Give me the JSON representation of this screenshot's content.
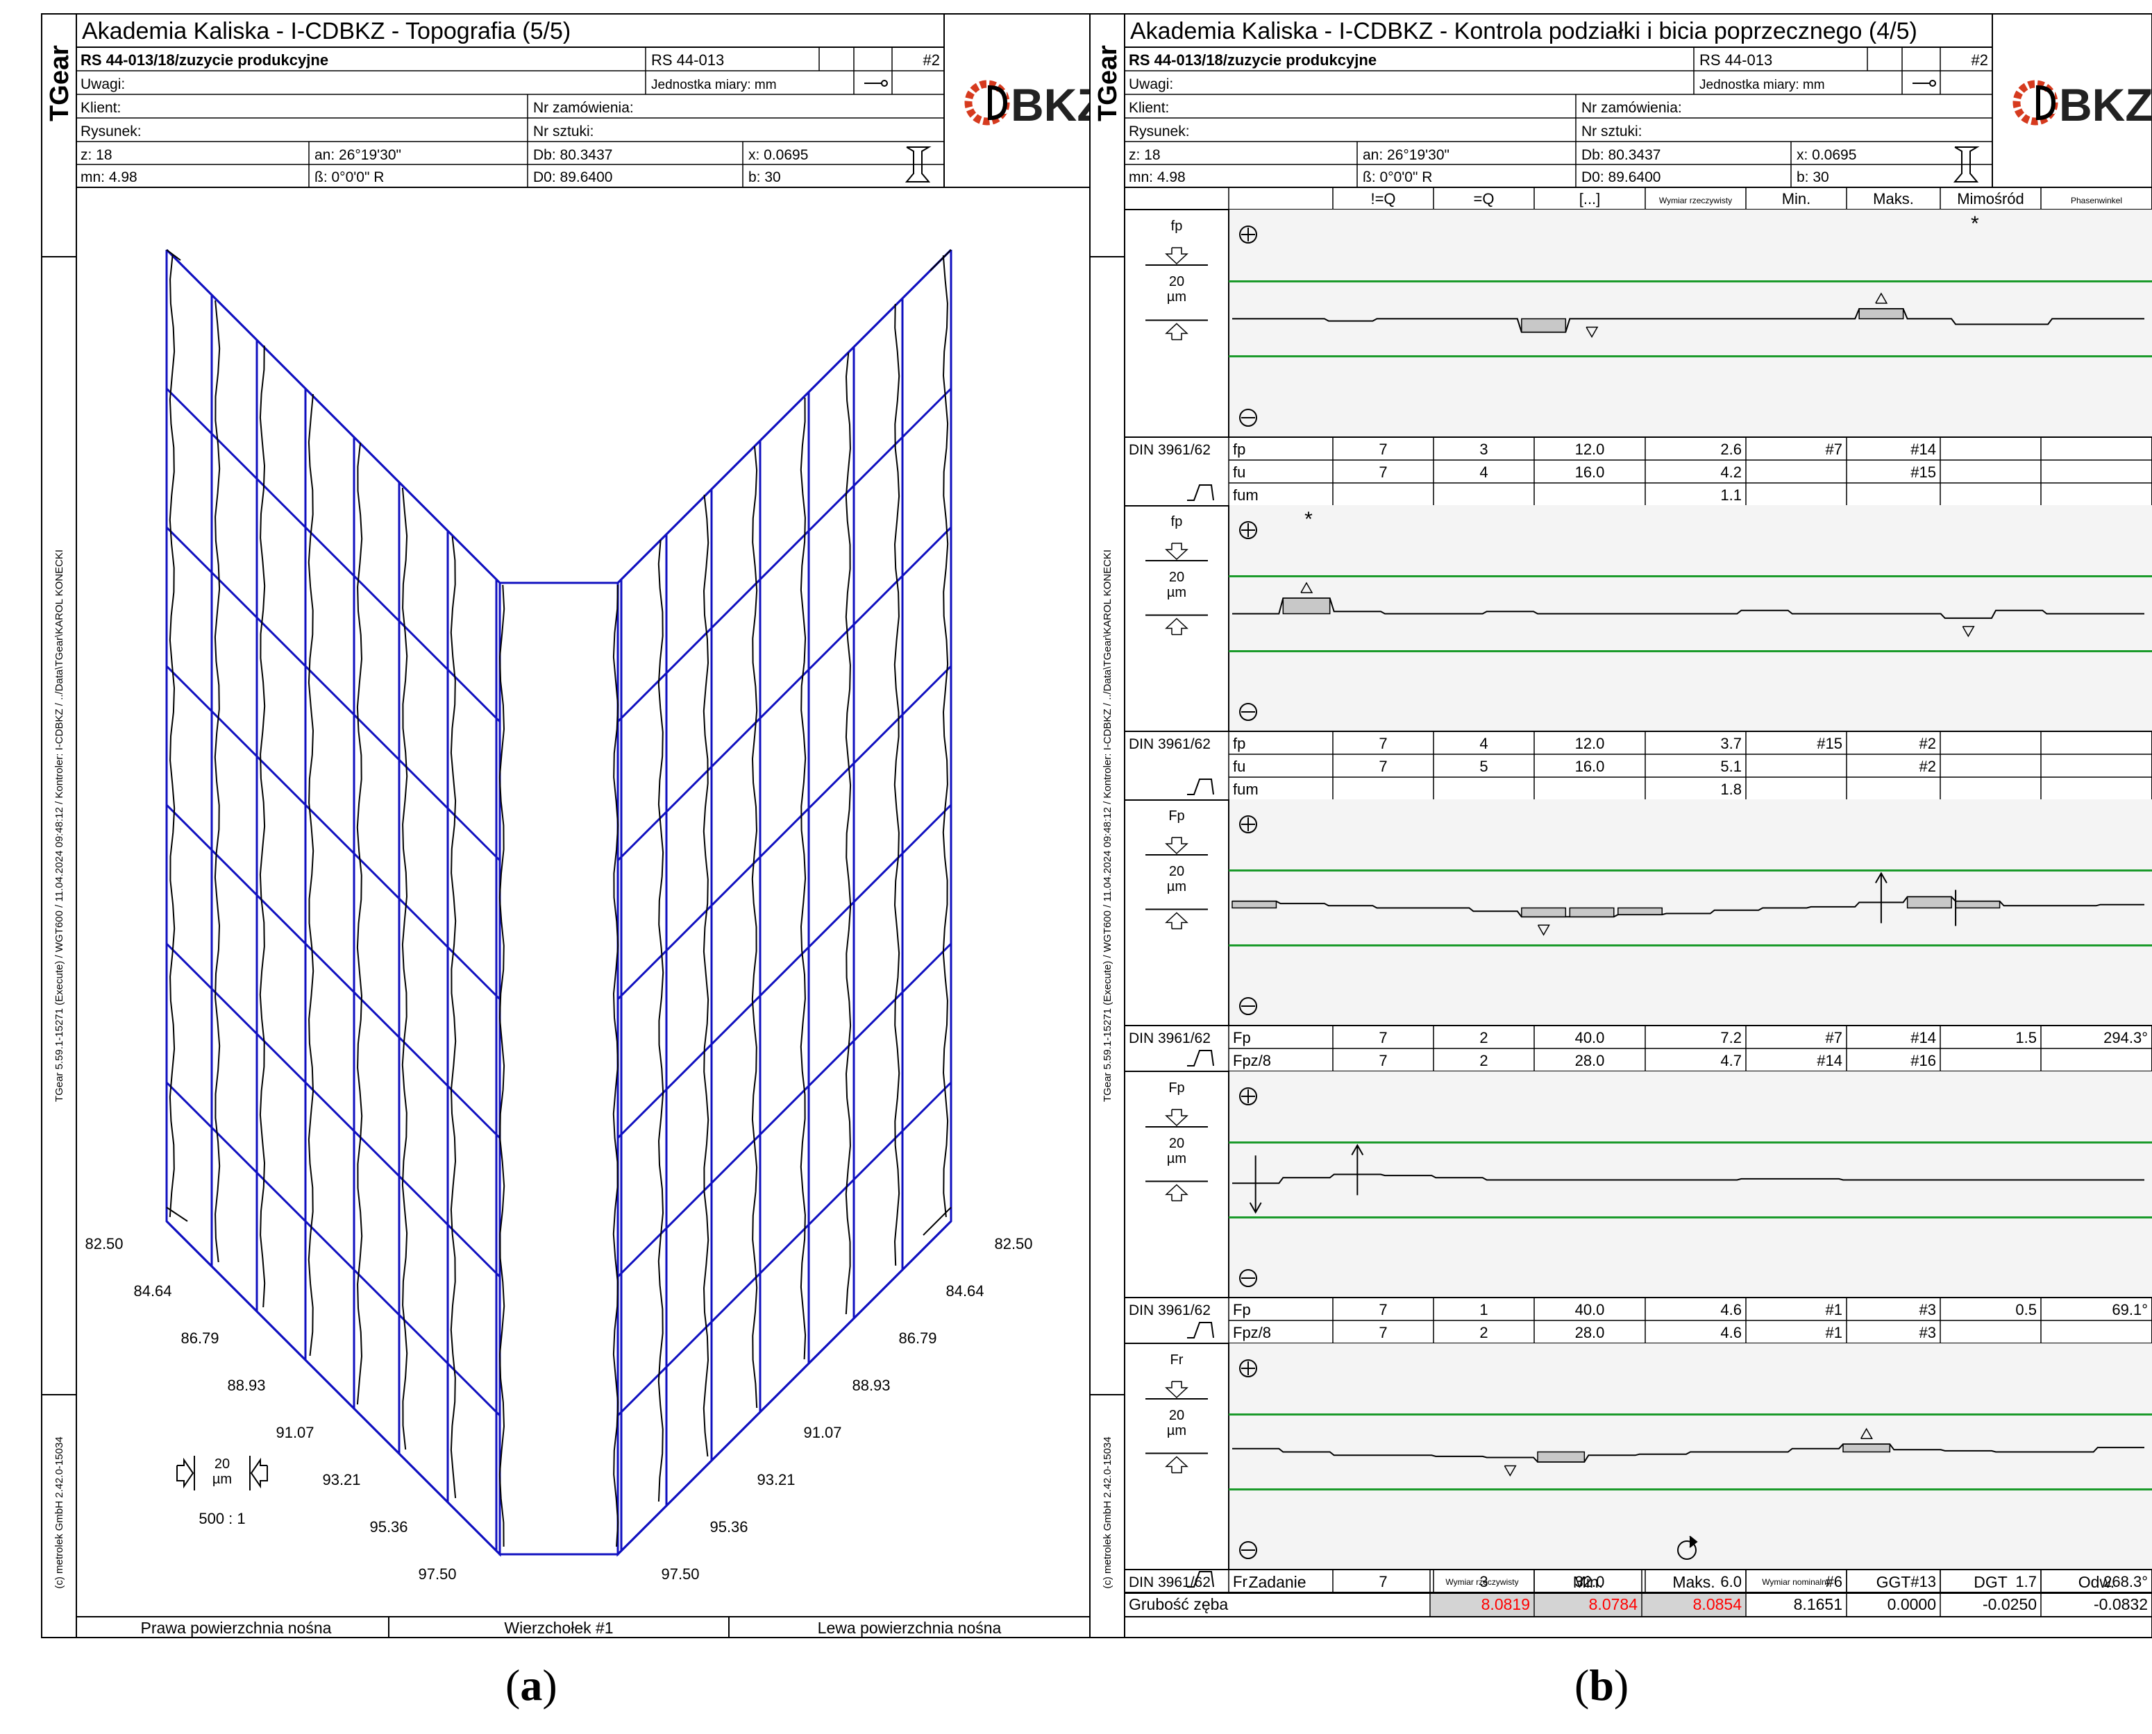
{
  "left": {
    "sidebar": {
      "tgear": "TGear",
      "path": "TGear 5.59.1-15271 (Execute) / WGT600 / 11.04.2024 09:48:12 / Kontroler: I-CDBKZ / ../Data\\TGear\\KAROL KONECKI",
      "copyright": "(c) metrolek GmbH 2.42.0-15034"
    },
    "title": "Akademia Kaliska  -  I-CDBKZ  - Topografia (5/5)",
    "header": {
      "order": "RS 44-013/18/zuzycie produkcyjne",
      "code": "RS 44-013",
      "num": "#2",
      "uwagi": "Uwagi:",
      "unit": "Jednostka miary: mm",
      "klient": "Klient:",
      "zam": "Nr zamówienia:",
      "rys": "Rysunek:",
      "szt": "Nr sztuki:",
      "z": "z: 18",
      "an": "an: 26°19'30\"",
      "db": "Db: 80.3437",
      "x": "x: 0.0695",
      "mn": "mn: 4.98",
      "beta": "ß: 0°0'0\" R",
      "d0": "D0: 89.6400",
      "b": "b: 30"
    },
    "logo": "BKZ",
    "scale_left": [
      "82.50",
      "84.64",
      "86.79",
      "88.93",
      "91.07",
      "93.21",
      "95.36",
      "97.50"
    ],
    "scale_right": [
      "82.50",
      "84.64",
      "86.79",
      "88.93",
      "91.07",
      "93.21",
      "95.36",
      "97.50"
    ],
    "um_value": "20",
    "um_unit": "µm",
    "ratio": "500 : 1",
    "footer": [
      "Prawa powierzchnia nośna",
      "Wierzchołek #1",
      "Lewa powierzchnia nośna"
    ],
    "caption": [
      "(",
      "a",
      ")"
    ]
  },
  "right": {
    "sidebar": {
      "tgear": "TGear",
      "path": "TGear 5.59.1-15271 (Execute) / WGT600 / 11.04.2024 09:48:12 / Kontroler: I-CDBKZ / ../Data\\TGear\\KAROL KONECKI",
      "copyright": "(c) metrolek GmbH 2.42.0-15034"
    },
    "title": "Akademia Kaliska  -  I-CDBKZ  - Kontrola podziałki i bicia poprzecznego (4/5)",
    "header": {
      "order": "RS 44-013/18/zuzycie produkcyjne",
      "code": "RS 44-013",
      "num": "#2",
      "uwagi": "Uwagi:",
      "unit": "Jednostka miary: mm",
      "klient": "Klient:",
      "zam": "Nr zamówienia:",
      "rys": "Rysunek:",
      "szt": "Nr sztuki:",
      "z": "z: 18",
      "an": "an: 26°19'30\"",
      "db": "Db: 80.3437",
      "x": "x: 0.0695",
      "mn": "mn: 4.98",
      "beta": "ß: 0°0'0\" R",
      "d0": "D0: 89.6400",
      "b": "b: 30"
    },
    "logo": "BKZ",
    "col_headers": [
      "!=Q",
      "=Q",
      "[...]",
      "Wymiar rzeczywisty",
      "Min.",
      "Maks.",
      "Mimośród",
      "Phasenwinkel"
    ],
    "panels": [
      {
        "label": "fp",
        "um": "20",
        "unit": "µm",
        "std": "DIN 3961/62",
        "rows": [
          [
            "fp",
            "7",
            "3",
            "12.0",
            "2.6",
            "#7",
            "#14",
            "",
            ""
          ],
          [
            "fu",
            "7",
            "4",
            "16.0",
            "4.2",
            "",
            "#15",
            "",
            ""
          ],
          [
            "fum",
            "",
            "",
            "",
            "1.1",
            "",
            "",
            "",
            ""
          ]
        ]
      },
      {
        "label": "fp",
        "um": "20",
        "unit": "µm",
        "std": "DIN 3961/62",
        "rows": [
          [
            "fp",
            "7",
            "4",
            "12.0",
            "3.7",
            "#15",
            "#2",
            "",
            ""
          ],
          [
            "fu",
            "7",
            "5",
            "16.0",
            "5.1",
            "",
            "#2",
            "",
            ""
          ],
          [
            "fum",
            "",
            "",
            "",
            "1.8",
            "",
            "",
            "",
            ""
          ]
        ]
      },
      {
        "label": "Fp",
        "um": "20",
        "unit": "µm",
        "std": "DIN 3961/62",
        "rows": [
          [
            "Fp",
            "7",
            "2",
            "40.0",
            "7.2",
            "#7",
            "#14",
            "1.5",
            "294.3°"
          ],
          [
            "Fpz/8",
            "7",
            "2",
            "28.0",
            "4.7",
            "#14",
            "#16",
            "",
            ""
          ]
        ]
      },
      {
        "label": "Fp",
        "um": "20",
        "unit": "µm",
        "std": "DIN 3961/62",
        "rows": [
          [
            "Fp",
            "7",
            "1",
            "40.0",
            "4.6",
            "#1",
            "#3",
            "0.5",
            "69.1°"
          ],
          [
            "Fpz/8",
            "7",
            "2",
            "28.0",
            "4.6",
            "#1",
            "#3",
            "",
            ""
          ]
        ]
      },
      {
        "label": "Fr",
        "um": "20",
        "unit": "µm",
        "std": "DIN 3961/62",
        "rows": [
          [
            "Fr",
            "7",
            "3",
            "32.0",
            "6.0",
            "#6",
            "#13",
            "1.7",
            "268.3°"
          ]
        ]
      }
    ],
    "bottom": {
      "headers": [
        "Zadanie",
        "Wymiar rzeczywisty",
        "Min.",
        "Maks.",
        "Wymiar nominalny",
        "GGT",
        "DGT",
        "Odw."
      ],
      "row": [
        "Grubość zęba",
        "8.0819",
        "8.0784",
        "8.0854",
        "8.1651",
        "0.0000",
        "-0.0250",
        "-0.0832"
      ]
    },
    "caption": [
      "(",
      "b",
      ")"
    ],
    "colors": {
      "tolerance": "#1a9a2a",
      "mesh": "#1010c0",
      "out": "#ff0000"
    }
  }
}
